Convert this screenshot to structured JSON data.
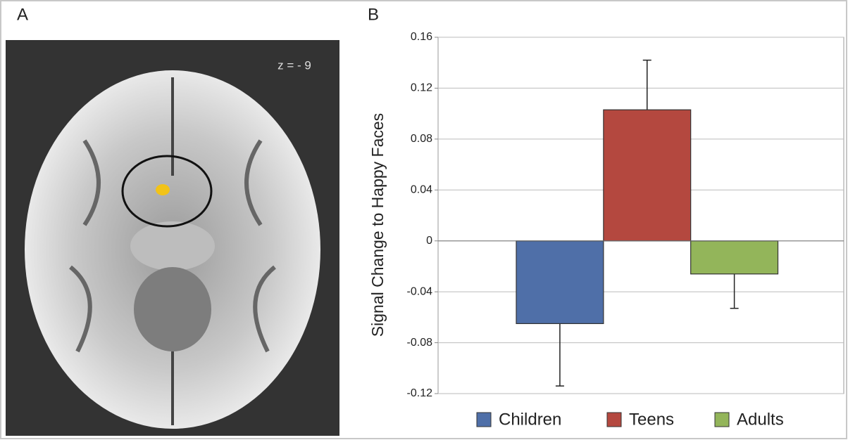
{
  "figure": {
    "panel_a_label": "A",
    "slice_label": "z = - 9"
  },
  "chart_data": {
    "type": "bar",
    "panel_label": "B",
    "ylabel": "Signal Change to Happy Faces",
    "categories": [
      null
    ],
    "series": [
      {
        "name": "Children",
        "color": "#4f6fa8",
        "values": [
          -0.065
        ],
        "errors": [
          0.049
        ]
      },
      {
        "name": "Teens",
        "color": "#b4483f",
        "values": [
          0.103
        ],
        "errors": [
          0.039
        ]
      },
      {
        "name": "Adults",
        "color": "#93b55a",
        "values": [
          -0.026
        ],
        "errors": [
          0.027
        ]
      }
    ],
    "ylim": [
      -0.12,
      0.16
    ],
    "yticks": [
      -0.12,
      -0.08,
      -0.04,
      0,
      0.04,
      0.08,
      0.12,
      0.16
    ],
    "grid": true
  }
}
